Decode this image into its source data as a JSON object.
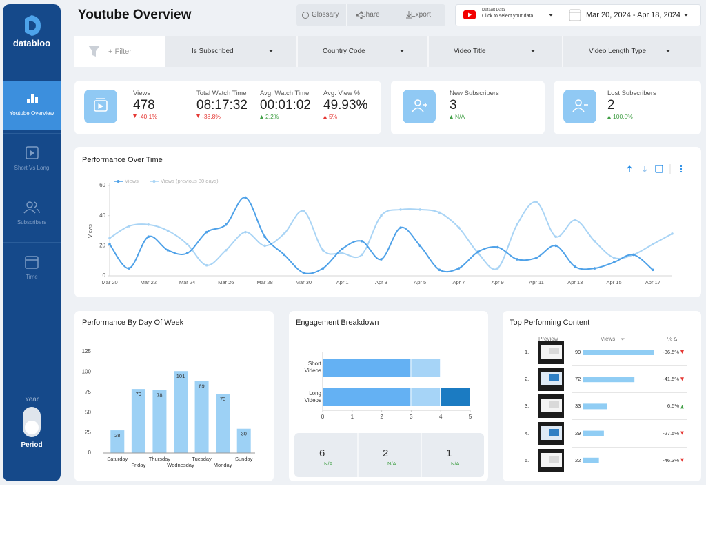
{
  "sidebar": {
    "brand": "databloo",
    "nav": [
      "Youtube Overview",
      "Short Vs Long",
      "Subscribers",
      "Time"
    ],
    "toggle": {
      "label": "Year",
      "value": "Period"
    }
  },
  "header": {
    "title": "Youtube Overview",
    "buttons": [
      "Glossary",
      "Share",
      "Export"
    ],
    "data_source": {
      "name": "Default Data",
      "hint": "Click to select your data"
    },
    "date_range": "Mar 20, 2024 - Apr 18, 2024"
  },
  "filters": {
    "add": "+ Filter",
    "controls": [
      "Is Subscribed",
      "Country Code",
      "Video Title",
      "Video Length Type"
    ]
  },
  "kpis": [
    {
      "label": "Views",
      "value": 478,
      "change": "-40.1%",
      "trend": "down",
      "color": "#e53935"
    },
    {
      "label": "Total Watch Time",
      "value": "08:17:32",
      "change": "-38.8%",
      "trend": "down",
      "color": "#e53935"
    },
    {
      "label": "Avg. Watch Time",
      "value": "00:01:02",
      "change": "2.2%",
      "trend": "up",
      "color": "#43a047"
    },
    {
      "label": "Avg. View %",
      "value": "49.93%",
      "change": "5%",
      "trend": "up",
      "color": "#e53935"
    },
    {
      "label": "New Subscribers",
      "value": 3,
      "change": "N/A",
      "trend": "up",
      "color": "#43a047"
    },
    {
      "label": "Lost Subscribers",
      "value": 2,
      "change": "100.0%",
      "trend": "up",
      "color": "#43a047"
    }
  ],
  "performance_over_time": {
    "type": "line",
    "title": "Performance Over Time",
    "y_label": "Views",
    "categories": [
      "Mar 20",
      null,
      "Mar 22",
      null,
      "Mar 24",
      null,
      "Mar 26",
      null,
      "Mar 28",
      null,
      "Mar 30",
      null,
      "Apr 1",
      null,
      "Apr 3",
      null,
      "Apr 5",
      null,
      "Apr 7",
      null,
      "Apr 9",
      null,
      "Apr 11",
      null,
      "Apr 13",
      null,
      "Apr 15",
      null,
      "Apr 17",
      null
    ],
    "series": [
      {
        "name": "Views",
        "color": "#4ea1e8",
        "values": [
          21,
          5,
          26,
          17,
          15,
          29,
          34,
          52,
          26,
          14,
          2,
          5,
          18,
          23,
          11,
          32,
          20,
          4,
          5,
          16,
          19,
          11,
          12,
          20,
          6,
          5,
          9,
          14,
          4,
          null
        ]
      },
      {
        "name": "Views (previous 30 days)",
        "color": "#a9d4f5",
        "values": [
          25,
          33,
          34,
          30,
          21,
          7,
          17,
          29,
          20,
          28,
          43,
          17,
          15,
          14,
          40,
          44,
          44,
          42,
          32,
          15,
          5,
          34,
          49,
          26,
          37,
          23,
          12,
          14,
          21,
          28
        ]
      }
    ],
    "ylim": [
      0,
      60
    ],
    "yticks": [
      0,
      20,
      40,
      60
    ]
  },
  "performance_by_day": {
    "type": "bar",
    "title": "Performance By Day Of Week",
    "categories": [
      "Saturday",
      "Friday",
      "Thursday",
      "Wednesday",
      "Tuesday",
      "Monday",
      "Sunday"
    ],
    "values": [
      28,
      79,
      78,
      101,
      89,
      73,
      30
    ],
    "color": "#9dd1f5",
    "ylim": [
      0,
      125
    ],
    "yticks": [
      0,
      25,
      50,
      75,
      100,
      125
    ]
  },
  "engagement_breakdown": {
    "type": "bar",
    "orientation": "horizontal",
    "stacked": true,
    "title": "Engagement Breakdown",
    "categories": [
      "Short Videos",
      "Long Videos"
    ],
    "series": [
      {
        "color": "#64b1f3",
        "values": [
          3,
          3
        ]
      },
      {
        "color": "#a6d4f7",
        "values": [
          1,
          1
        ]
      },
      {
        "color": "#1b7bc2",
        "values": [
          null,
          1
        ]
      }
    ],
    "xlim": [
      0,
      5
    ],
    "xticks": [
      0,
      1,
      2,
      3,
      4,
      5
    ],
    "stats": [
      {
        "value": 6,
        "change": "N/A"
      },
      {
        "value": 2,
        "change": "N/A"
      },
      {
        "value": 1,
        "change": "N/A"
      }
    ]
  },
  "top_content": {
    "title": "Top Performing Content",
    "columns": [
      "Preview",
      "Views",
      "% Δ"
    ],
    "bar_color": "#90cdf4",
    "rows": [
      {
        "rank": "1.",
        "views": 99,
        "change": "-36.5%",
        "trend": "down"
      },
      {
        "rank": "2.",
        "views": 72,
        "change": "-41.5%",
        "trend": "down"
      },
      {
        "rank": "3.",
        "views": 33,
        "change": "6.5%",
        "trend": "up"
      },
      {
        "rank": "4.",
        "views": 29,
        "change": "-27.5%",
        "trend": "down"
      },
      {
        "rank": "5.",
        "views": 22,
        "change": "-46.3%",
        "trend": "down"
      }
    ]
  }
}
